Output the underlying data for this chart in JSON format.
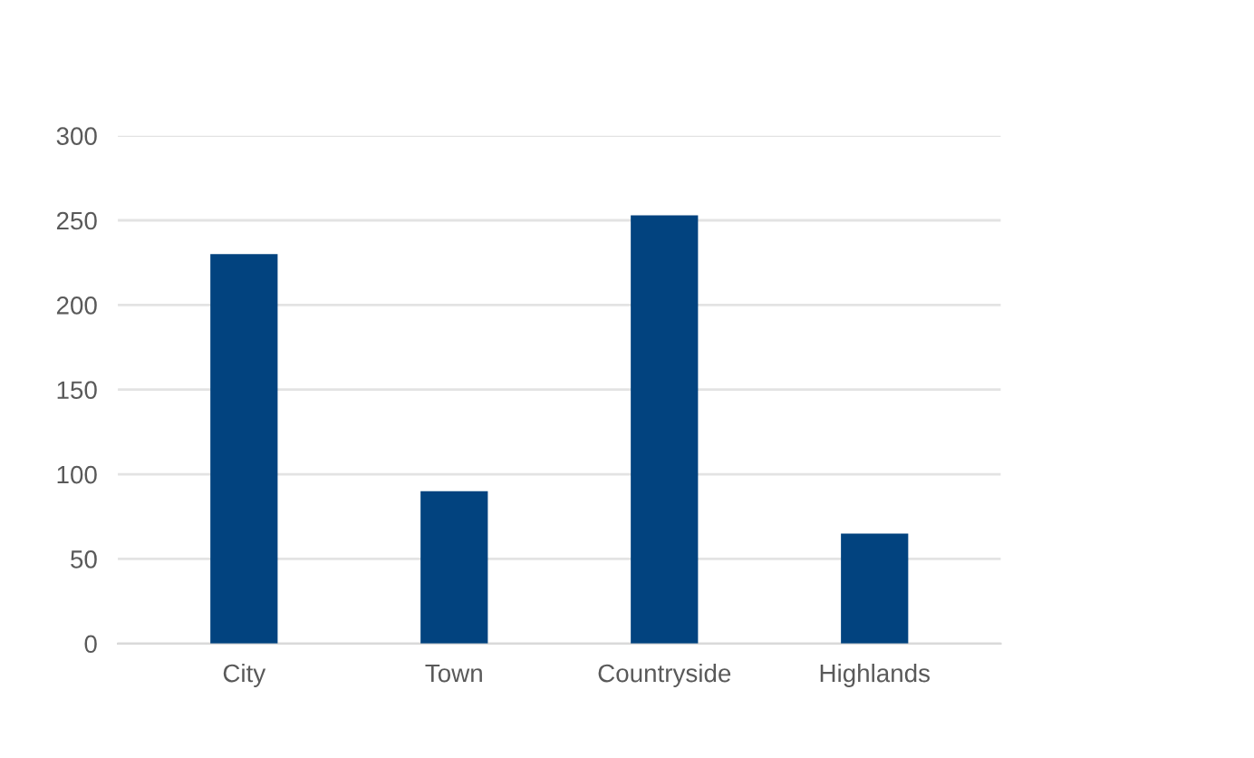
{
  "chart_data": {
    "type": "bar",
    "categories": [
      "City",
      "Town",
      "Countryside",
      "Highlands"
    ],
    "values": [
      230,
      90,
      253,
      65
    ],
    "color": "#02437f",
    "ylim": [
      0,
      300
    ],
    "yticks": [
      0,
      50,
      100,
      150,
      200,
      250,
      300
    ],
    "grid": "y",
    "legend": false
  }
}
